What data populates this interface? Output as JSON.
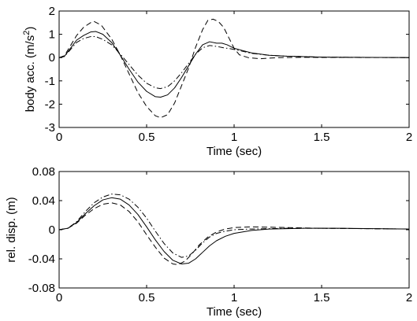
{
  "chart_data": [
    {
      "type": "line",
      "xlabel": "Time (sec)",
      "ylabel": "body acc. (m/s",
      "ylabel_sup": "2",
      "ylabel_tail": ")",
      "xlim": [
        0,
        2
      ],
      "ylim": [
        -3,
        2
      ],
      "x_ticks": [
        "0",
        "0.5",
        "1",
        "1.5",
        "2"
      ],
      "y_ticks": [
        "-3",
        "-2",
        "-1",
        "0",
        "1",
        "2"
      ],
      "x_tick_values": [
        0,
        0.5,
        1,
        1.5,
        2
      ],
      "y_tick_values": [
        -3,
        -2,
        -1,
        0,
        1,
        2
      ],
      "grid": false,
      "series": [
        {
          "style": "solid",
          "points": [
            [
              0,
              0
            ],
            [
              0.03,
              0.05
            ],
            [
              0.06,
              0.35
            ],
            [
              0.1,
              0.75
            ],
            [
              0.14,
              0.95
            ],
            [
              0.18,
              1.1
            ],
            [
              0.21,
              1.12
            ],
            [
              0.25,
              1.0
            ],
            [
              0.3,
              0.65
            ],
            [
              0.35,
              0.1
            ],
            [
              0.4,
              -0.5
            ],
            [
              0.45,
              -1.05
            ],
            [
              0.5,
              -1.45
            ],
            [
              0.55,
              -1.68
            ],
            [
              0.58,
              -1.7
            ],
            [
              0.62,
              -1.6
            ],
            [
              0.66,
              -1.3
            ],
            [
              0.7,
              -0.85
            ],
            [
              0.74,
              -0.35
            ],
            [
              0.78,
              0.15
            ],
            [
              0.82,
              0.55
            ],
            [
              0.86,
              0.68
            ],
            [
              0.9,
              0.62
            ],
            [
              0.93,
              0.62
            ],
            [
              0.96,
              0.55
            ],
            [
              1.0,
              0.4
            ],
            [
              1.05,
              0.3
            ],
            [
              1.1,
              0.2
            ],
            [
              1.2,
              0.1
            ],
            [
              1.3,
              0.06
            ],
            [
              1.4,
              0.04
            ],
            [
              1.5,
              0.02
            ],
            [
              1.7,
              0.01
            ],
            [
              2,
              0
            ]
          ]
        },
        {
          "style": "dashed",
          "points": [
            [
              0,
              0
            ],
            [
              0.03,
              0.08
            ],
            [
              0.06,
              0.45
            ],
            [
              0.1,
              0.95
            ],
            [
              0.14,
              1.3
            ],
            [
              0.18,
              1.5
            ],
            [
              0.2,
              1.55
            ],
            [
              0.24,
              1.4
            ],
            [
              0.3,
              0.8
            ],
            [
              0.35,
              0.1
            ],
            [
              0.4,
              -0.7
            ],
            [
              0.45,
              -1.5
            ],
            [
              0.5,
              -2.1
            ],
            [
              0.55,
              -2.5
            ],
            [
              0.58,
              -2.58
            ],
            [
              0.62,
              -2.45
            ],
            [
              0.66,
              -1.95
            ],
            [
              0.7,
              -1.2
            ],
            [
              0.74,
              -0.45
            ],
            [
              0.78,
              0.45
            ],
            [
              0.82,
              1.2
            ],
            [
              0.85,
              1.6
            ],
            [
              0.88,
              1.65
            ],
            [
              0.91,
              1.55
            ],
            [
              0.94,
              1.3
            ],
            [
              0.97,
              0.85
            ],
            [
              1.0,
              0.4
            ],
            [
              1.03,
              0.12
            ],
            [
              1.08,
              0.0
            ],
            [
              1.15,
              -0.05
            ],
            [
              1.25,
              0.0
            ],
            [
              1.4,
              0.01
            ],
            [
              2,
              0
            ]
          ]
        },
        {
          "style": "dashdot",
          "points": [
            [
              0,
              0
            ],
            [
              0.03,
              0.05
            ],
            [
              0.06,
              0.3
            ],
            [
              0.1,
              0.65
            ],
            [
              0.14,
              0.82
            ],
            [
              0.18,
              0.9
            ],
            [
              0.21,
              0.9
            ],
            [
              0.25,
              0.78
            ],
            [
              0.3,
              0.55
            ],
            [
              0.35,
              0.15
            ],
            [
              0.4,
              -0.3
            ],
            [
              0.45,
              -0.75
            ],
            [
              0.5,
              -1.1
            ],
            [
              0.55,
              -1.3
            ],
            [
              0.58,
              -1.33
            ],
            [
              0.62,
              -1.25
            ],
            [
              0.66,
              -1.0
            ],
            [
              0.7,
              -0.65
            ],
            [
              0.74,
              -0.25
            ],
            [
              0.78,
              0.15
            ],
            [
              0.82,
              0.42
            ],
            [
              0.86,
              0.52
            ],
            [
              0.9,
              0.48
            ],
            [
              0.94,
              0.42
            ],
            [
              0.98,
              0.38
            ],
            [
              1.02,
              0.32
            ],
            [
              1.06,
              0.25
            ],
            [
              1.1,
              0.18
            ],
            [
              1.2,
              0.1
            ],
            [
              1.3,
              0.06
            ],
            [
              1.4,
              0.04
            ],
            [
              1.5,
              0.02
            ],
            [
              1.7,
              0.01
            ],
            [
              2,
              0
            ]
          ]
        }
      ]
    },
    {
      "type": "line",
      "xlabel": "Time (sec)",
      "ylabel": "rel. disp. (m)",
      "xlim": [
        0,
        2
      ],
      "ylim": [
        -0.08,
        0.08
      ],
      "x_ticks": [
        "0",
        "0.5",
        "1",
        "1.5",
        "2"
      ],
      "y_ticks": [
        "-0.08",
        "-0.04",
        "0",
        "0.04",
        "0.08"
      ],
      "x_tick_values": [
        0,
        0.5,
        1,
        1.5,
        2
      ],
      "y_tick_values": [
        -0.08,
        -0.04,
        0,
        0.04,
        0.08
      ],
      "grid": false,
      "series": [
        {
          "style": "solid",
          "points": [
            [
              0,
              0
            ],
            [
              0.05,
              0.002
            ],
            [
              0.1,
              0.01
            ],
            [
              0.15,
              0.022
            ],
            [
              0.2,
              0.033
            ],
            [
              0.25,
              0.041
            ],
            [
              0.3,
              0.044
            ],
            [
              0.35,
              0.042
            ],
            [
              0.4,
              0.034
            ],
            [
              0.45,
              0.021
            ],
            [
              0.5,
              0.004
            ],
            [
              0.55,
              -0.014
            ],
            [
              0.6,
              -0.03
            ],
            [
              0.65,
              -0.042
            ],
            [
              0.7,
              -0.047
            ],
            [
              0.74,
              -0.046
            ],
            [
              0.78,
              -0.04
            ],
            [
              0.82,
              -0.031
            ],
            [
              0.86,
              -0.022
            ],
            [
              0.9,
              -0.015
            ],
            [
              0.95,
              -0.009
            ],
            [
              1.0,
              -0.005
            ],
            [
              1.1,
              -0.001
            ],
            [
              1.2,
              0.001
            ],
            [
              1.4,
              0.002
            ],
            [
              1.6,
              0.002
            ],
            [
              2,
              0.001
            ]
          ]
        },
        {
          "style": "dashed",
          "points": [
            [
              0,
              0
            ],
            [
              0.05,
              0.002
            ],
            [
              0.1,
              0.009
            ],
            [
              0.15,
              0.02
            ],
            [
              0.2,
              0.029
            ],
            [
              0.25,
              0.035
            ],
            [
              0.3,
              0.037
            ],
            [
              0.35,
              0.034
            ],
            [
              0.4,
              0.025
            ],
            [
              0.45,
              0.011
            ],
            [
              0.5,
              -0.007
            ],
            [
              0.55,
              -0.024
            ],
            [
              0.6,
              -0.039
            ],
            [
              0.65,
              -0.047
            ],
            [
              0.68,
              -0.048
            ],
            [
              0.72,
              -0.043
            ],
            [
              0.76,
              -0.033
            ],
            [
              0.8,
              -0.021
            ],
            [
              0.85,
              -0.01
            ],
            [
              0.9,
              -0.003
            ],
            [
              0.95,
              0.001
            ],
            [
              1.0,
              0.003
            ],
            [
              1.1,
              0.004
            ],
            [
              1.3,
              0.003
            ],
            [
              1.5,
              0.002
            ],
            [
              2,
              0.001
            ]
          ]
        },
        {
          "style": "dashdot",
          "points": [
            [
              0,
              0
            ],
            [
              0.05,
              0.002
            ],
            [
              0.1,
              0.011
            ],
            [
              0.15,
              0.025
            ],
            [
              0.2,
              0.037
            ],
            [
              0.25,
              0.045
            ],
            [
              0.3,
              0.049
            ],
            [
              0.35,
              0.048
            ],
            [
              0.4,
              0.042
            ],
            [
              0.45,
              0.031
            ],
            [
              0.5,
              0.016
            ],
            [
              0.55,
              -0.002
            ],
            [
              0.6,
              -0.019
            ],
            [
              0.65,
              -0.032
            ],
            [
              0.7,
              -0.038
            ],
            [
              0.74,
              -0.036
            ],
            [
              0.78,
              -0.028
            ],
            [
              0.82,
              -0.018
            ],
            [
              0.86,
              -0.01
            ],
            [
              0.9,
              -0.005
            ],
            [
              0.95,
              -0.002
            ],
            [
              1.0,
              0.0
            ],
            [
              1.1,
              0.001
            ],
            [
              1.3,
              0.002
            ],
            [
              1.5,
              0.002
            ],
            [
              2,
              0.001
            ]
          ]
        }
      ]
    }
  ]
}
